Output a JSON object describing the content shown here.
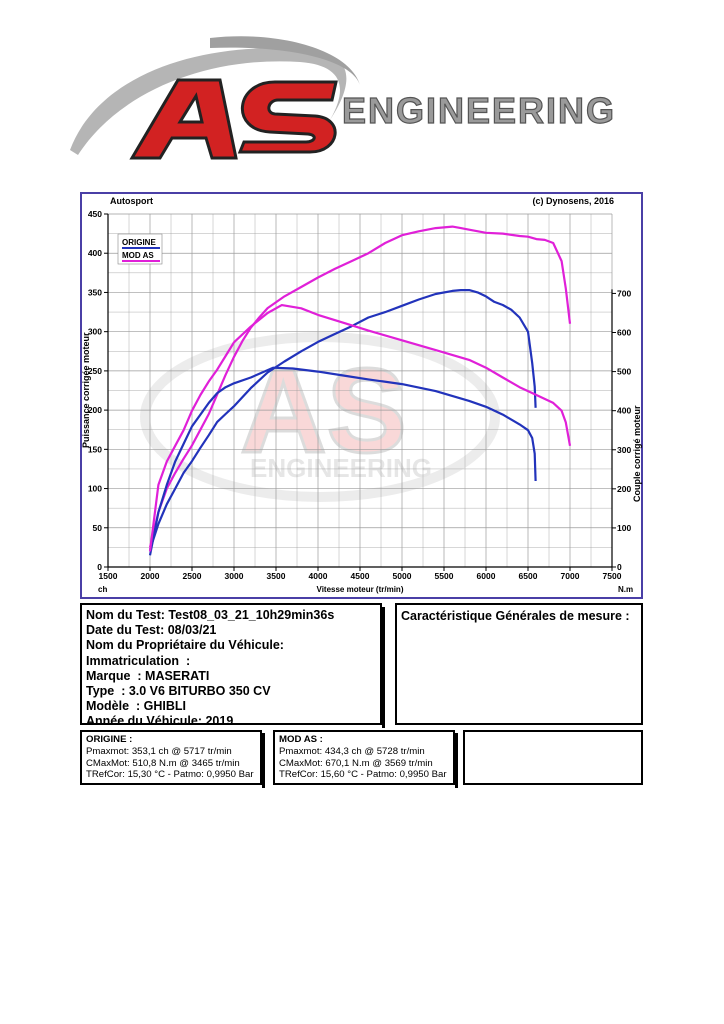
{
  "logo": {
    "letters": "AS",
    "word": "ENGINEERING",
    "watermark_word": "ENGINEERING"
  },
  "chart_data": {
    "type": "line",
    "header_left": "Autosport",
    "header_right": "(c) Dynosens, 2016",
    "xlabel": "Vitesse moteur (tr/min)",
    "ylabel": "Puissance corrigée moteur",
    "y2label": "Couple corrigé moteur",
    "y_unit": "ch",
    "y2_unit": "N.m",
    "x_ticks": [
      "1500",
      "2000",
      "2500",
      "3000",
      "3500",
      "4000",
      "4500",
      "5000",
      "5500",
      "6000",
      "6500",
      "7000",
      "7500"
    ],
    "y_ticks": [
      "0",
      "50",
      "100",
      "150",
      "200",
      "250",
      "300",
      "350",
      "400",
      "450"
    ],
    "y2_ticks": [
      "0",
      "100",
      "200",
      "300",
      "400",
      "500",
      "600",
      "700"
    ],
    "xlim": [
      1500,
      7500
    ],
    "ylim": [
      0,
      450
    ],
    "y2lim": [
      0,
      700
    ],
    "grid": true,
    "legend_position": "top-left",
    "colors": {
      "ORIGINE": "#2233bb",
      "MOD AS": "#e020d8"
    },
    "series": [
      {
        "name": "ORIGINE",
        "quantity": "power",
        "x": [
          2000,
          2100,
          2200,
          2300,
          2400,
          2500,
          2600,
          2700,
          2800,
          2900,
          3000,
          3200,
          3400,
          3600,
          3800,
          4000,
          4200,
          4400,
          4600,
          4800,
          5000,
          5200,
          5400,
          5600,
          5700,
          5800,
          5900,
          6000,
          6100,
          6200,
          6300,
          6400,
          6500,
          6550,
          6580,
          6590
        ],
        "y": [
          22,
          55,
          80,
          100,
          120,
          135,
          152,
          168,
          185,
          195,
          205,
          228,
          248,
          262,
          275,
          287,
          297,
          307,
          318,
          325,
          333,
          341,
          348,
          352,
          353,
          353,
          350,
          345,
          338,
          334,
          328,
          318,
          300,
          260,
          230,
          203
        ]
      },
      {
        "name": "MOD AS",
        "quantity": "power",
        "x": [
          2000,
          2100,
          2200,
          2300,
          2400,
          2500,
          2600,
          2700,
          2800,
          2900,
          3000,
          3100,
          3200,
          3300,
          3400,
          3600,
          3800,
          4000,
          4200,
          4400,
          4600,
          4800,
          5000,
          5200,
          5400,
          5600,
          5700,
          5800,
          6000,
          6200,
          6400,
          6500,
          6600,
          6700,
          6800,
          6900,
          6950,
          7000
        ],
        "y": [
          25,
          70,
          100,
          120,
          138,
          155,
          175,
          195,
          220,
          245,
          268,
          288,
          305,
          318,
          330,
          345,
          357,
          369,
          380,
          390,
          400,
          413,
          423,
          428,
          432,
          434,
          432,
          430,
          426,
          425,
          422,
          421,
          418,
          417,
          413,
          390,
          355,
          310
        ]
      },
      {
        "name": "ORIGINE",
        "quantity": "torque",
        "x": [
          2000,
          2100,
          2200,
          2300,
          2400,
          2500,
          2600,
          2700,
          2800,
          2900,
          3000,
          3200,
          3465,
          3700,
          4000,
          4300,
          4600,
          5000,
          5400,
          5800,
          6000,
          6200,
          6400,
          6500,
          6550,
          6580,
          6590
        ],
        "y": [
          30,
          140,
          210,
          270,
          315,
          360,
          390,
          420,
          445,
          460,
          470,
          485,
          510,
          508,
          500,
          490,
          480,
          468,
          450,
          425,
          410,
          390,
          365,
          350,
          330,
          290,
          220
        ]
      },
      {
        "name": "MOD AS",
        "quantity": "torque",
        "x": [
          2000,
          2100,
          2200,
          2300,
          2400,
          2500,
          2600,
          2700,
          2800,
          2900,
          3000,
          3200,
          3400,
          3569,
          3800,
          4000,
          4300,
          4600,
          5000,
          5400,
          5800,
          6000,
          6200,
          6400,
          6600,
          6800,
          6900,
          6950,
          7000
        ],
        "y": [
          40,
          210,
          270,
          310,
          350,
          400,
          440,
          475,
          505,
          540,
          575,
          615,
          650,
          670,
          662,
          645,
          625,
          605,
          580,
          555,
          530,
          510,
          485,
          460,
          440,
          420,
          400,
          370,
          310
        ]
      }
    ]
  },
  "test_info": {
    "lines": [
      "Nom du Test: Test08_03_21_10h29min36s",
      "Date du Test: 08/03/21",
      "Nom du Propriétaire du Véhicule:",
      "Immatriculation  :",
      "Marque  : MASERATI",
      "Type  : 3.0 V6 BITURBO 350 CV",
      "Modèle  : GHIBLI",
      "Année du Véhicule: 2019"
    ]
  },
  "measure_box": {
    "title": "Caractéristique Générales de mesure :"
  },
  "origine_box": {
    "title": "ORIGINE :",
    "lines": [
      "Pmaxmot: 353,1 ch @ 5717 tr/min",
      "CMaxMot: 510,8 N.m @ 3465 tr/min",
      "TRefCor: 15,30 °C - Patmo: 0,9950 Bar"
    ]
  },
  "modas_box": {
    "title": "MOD AS :",
    "lines": [
      "Pmaxmot: 434,3 ch @ 5728 tr/min",
      "CMaxMot: 670,1 N.m @ 3569 tr/min",
      "TRefCor: 15,60 °C - Patmo: 0,9950 Bar"
    ]
  }
}
